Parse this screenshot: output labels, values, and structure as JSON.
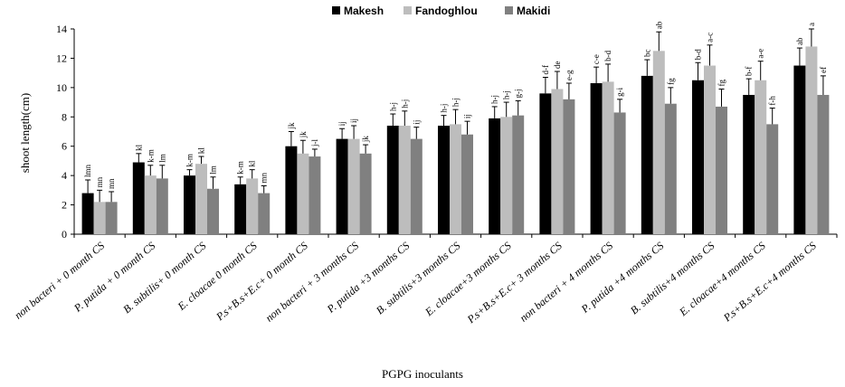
{
  "chart_data": {
    "type": "bar",
    "xlabel": "PGPG  inoculants",
    "ylabel": "shoot length(cm)",
    "ylim": [
      0,
      14
    ],
    "yticks": [
      0,
      2,
      4,
      6,
      8,
      10,
      12,
      14
    ],
    "grid": false,
    "legend_position": "top-center",
    "categories": [
      "non bacteri + 0 month CS",
      "P. putida + 0 month CS",
      "B. subtilis+ 0 month CS",
      "E. cloacae 0 month CS",
      "P.s+B.s+E.c+ 0 month CS",
      "non bacteri + 3 months CS",
      "P. putida +3 months CS",
      "B. subtilis+3 months CS",
      "E. cloacae+3 months CS",
      "P.s+B.s+E.c+ 3 months CS",
      "non bacteri + 4 months CS",
      "P. putida +4 months CS",
      "B. subtilis+4 months CS",
      "E. cloacae+4 months CS",
      "P.s+B.s+E.c+4 months CS"
    ],
    "series": [
      {
        "name": "Makesh",
        "color": "#000000",
        "values": [
          2.8,
          4.9,
          4.0,
          3.4,
          6.0,
          6.5,
          7.4,
          7.4,
          7.9,
          9.6,
          10.3,
          10.8,
          10.5,
          9.5,
          11.5
        ],
        "errors": [
          0.9,
          0.6,
          0.4,
          0.5,
          1.0,
          0.7,
          0.8,
          0.7,
          0.8,
          1.1,
          1.1,
          1.1,
          1.2,
          1.1,
          1.2
        ],
        "labels": [
          "lmn",
          "kl",
          "k-m",
          "k-m",
          "jk",
          "ij",
          "h-j",
          "h-j",
          "h-j",
          "d-f",
          "c-e",
          "bc",
          "b-d",
          "b-f",
          "ab"
        ]
      },
      {
        "name": "Fandoghlou",
        "color": "#bdbdbd",
        "values": [
          2.2,
          4.0,
          4.8,
          3.8,
          5.5,
          6.5,
          7.4,
          7.5,
          8.0,
          9.9,
          10.4,
          12.5,
          11.5,
          10.5,
          12.8
        ],
        "errors": [
          0.8,
          0.7,
          0.5,
          0.6,
          0.9,
          0.9,
          1.0,
          1.0,
          1.0,
          1.2,
          1.2,
          1.3,
          1.4,
          1.3,
          1.2
        ],
        "labels": [
          "mn",
          "k-m",
          "kl",
          "kl",
          "jk",
          "ij",
          "h-j",
          "h-j",
          "h-j",
          "de",
          "b-d",
          "ab",
          "a-c",
          "a-e",
          "a"
        ]
      },
      {
        "name": "Makidi",
        "color": "#808080",
        "values": [
          2.2,
          3.8,
          3.1,
          2.8,
          5.3,
          5.5,
          6.5,
          6.8,
          8.1,
          9.2,
          8.3,
          8.9,
          8.7,
          7.5,
          9.5
        ],
        "errors": [
          0.7,
          0.9,
          0.8,
          0.5,
          0.5,
          0.6,
          0.8,
          0.9,
          1.0,
          1.1,
          0.9,
          1.1,
          1.2,
          1.1,
          1.3
        ],
        "labels": [
          "mn",
          "lm",
          "lm",
          "mn",
          "j-l",
          "jk",
          "ij",
          "ij",
          "g-j",
          "e-g",
          "g-i",
          "fg",
          "fg",
          "f-h",
          "ef"
        ]
      }
    ]
  }
}
